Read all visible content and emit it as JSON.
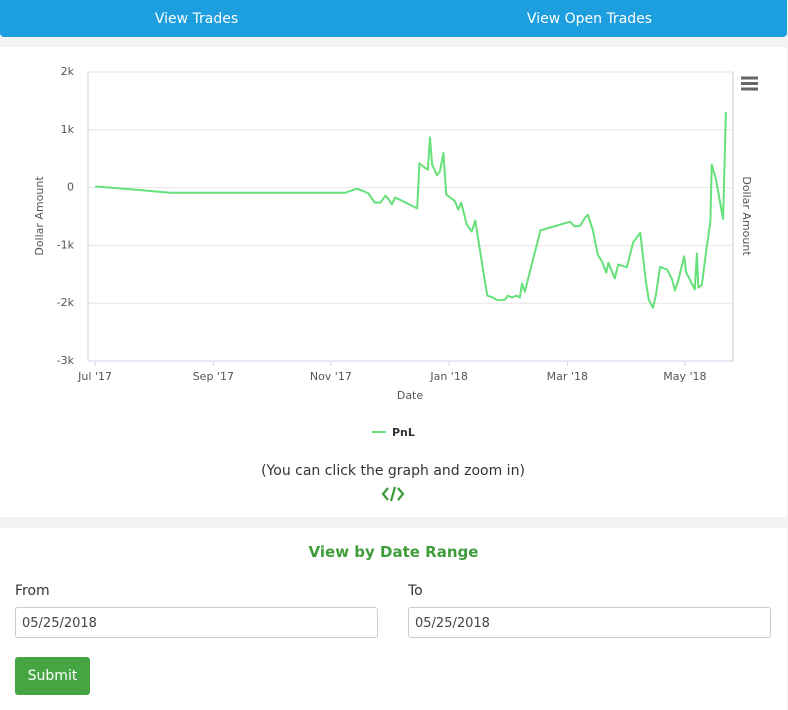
{
  "nav": {
    "tabs": [
      "View Trades",
      "View Open Trades"
    ]
  },
  "chart_data": {
    "type": "line",
    "ylabel": "Dollar Amount",
    "y2label": "Dollar Amount",
    "xlabel": "Date",
    "x": [
      2017.5,
      2017.556,
      2017.606,
      2017.853,
      2017.869,
      2017.877,
      2017.886,
      2017.895,
      2017.903,
      2017.91,
      2017.914,
      2017.919,
      2017.924,
      2017.955,
      2017.958,
      2017.965,
      2017.97,
      2017.973,
      2017.976,
      2017.983,
      2017.987,
      2017.992,
      2017.996,
      2018.008,
      2018.013,
      2018.017,
      2018.025,
      2018.032,
      2018.037,
      2018.049,
      2018.054,
      2018.062,
      2018.068,
      2018.079,
      2018.083,
      2018.089,
      2018.095,
      2018.1,
      2018.103,
      2018.107,
      2018.112,
      2018.129,
      2018.171,
      2018.177,
      2018.185,
      2018.192,
      2018.196,
      2018.203,
      2018.21,
      2018.216,
      2018.222,
      2018.225,
      2018.234,
      2018.239,
      2018.251,
      2018.26,
      2018.27,
      2018.278,
      2018.282,
      2018.288,
      2018.292,
      2018.298,
      2018.308,
      2018.315,
      2018.319,
      2018.323,
      2018.332,
      2018.335,
      2018.34,
      2018.347,
      2018.35,
      2018.352,
      2018.357,
      2018.363,
      2018.369,
      2018.371,
      2018.377,
      2018.387,
      2018.391
    ],
    "series": [
      {
        "name": "PnL",
        "color": "#66e07a",
        "values": [
          20,
          -35,
          -90,
          -90,
          -20,
          -50,
          -100,
          -260,
          -260,
          -140,
          -190,
          -290,
          -170,
          -360,
          420,
          350,
          310,
          870,
          400,
          210,
          280,
          600,
          -120,
          -230,
          -380,
          -260,
          -640,
          -760,
          -570,
          -1500,
          -1870,
          -1900,
          -1950,
          -1940,
          -1870,
          -1900,
          -1870,
          -1900,
          -1660,
          -1800,
          -1560,
          -740,
          -590,
          -670,
          -660,
          -520,
          -470,
          -730,
          -1160,
          -1280,
          -1470,
          -1300,
          -1570,
          -1330,
          -1380,
          -950,
          -780,
          -1630,
          -1940,
          -2080,
          -1870,
          -1370,
          -1420,
          -1590,
          -1780,
          -1640,
          -1190,
          -1470,
          -1590,
          -1760,
          -1140,
          -1730,
          -1680,
          -1110,
          -590,
          400,
          140,
          -540,
          1310
        ]
      }
    ],
    "xlim": [
      2017.49,
      2018.401
    ],
    "xticks": [
      {
        "value": 2017.5,
        "label": "Jul '17"
      },
      {
        "value": 2017.667,
        "label": "Sep '17"
      },
      {
        "value": 2017.833,
        "label": "Nov '17"
      },
      {
        "value": 2018.0,
        "label": "Jan '18"
      },
      {
        "value": 2018.167,
        "label": "Mar '18"
      },
      {
        "value": 2018.333,
        "label": "May '18"
      }
    ],
    "ylim": [
      -3000,
      2000
    ],
    "yticks": [
      {
        "value": 2000,
        "label": "2k"
      },
      {
        "value": 1000,
        "label": "1k"
      },
      0,
      {
        "value": -1000,
        "label": "-1k"
      },
      {
        "value": -2000,
        "label": "-2k"
      },
      {
        "value": -3000,
        "label": "-3k"
      }
    ],
    "grid": true
  },
  "chart_panel": {
    "hint": "(You can click the graph and zoom in)"
  },
  "date_range": {
    "title": "View by Date Range",
    "from_label": "From",
    "from_value": "05/25/2018",
    "to_label": "To",
    "to_value": "05/25/2018",
    "submit": "Submit"
  }
}
